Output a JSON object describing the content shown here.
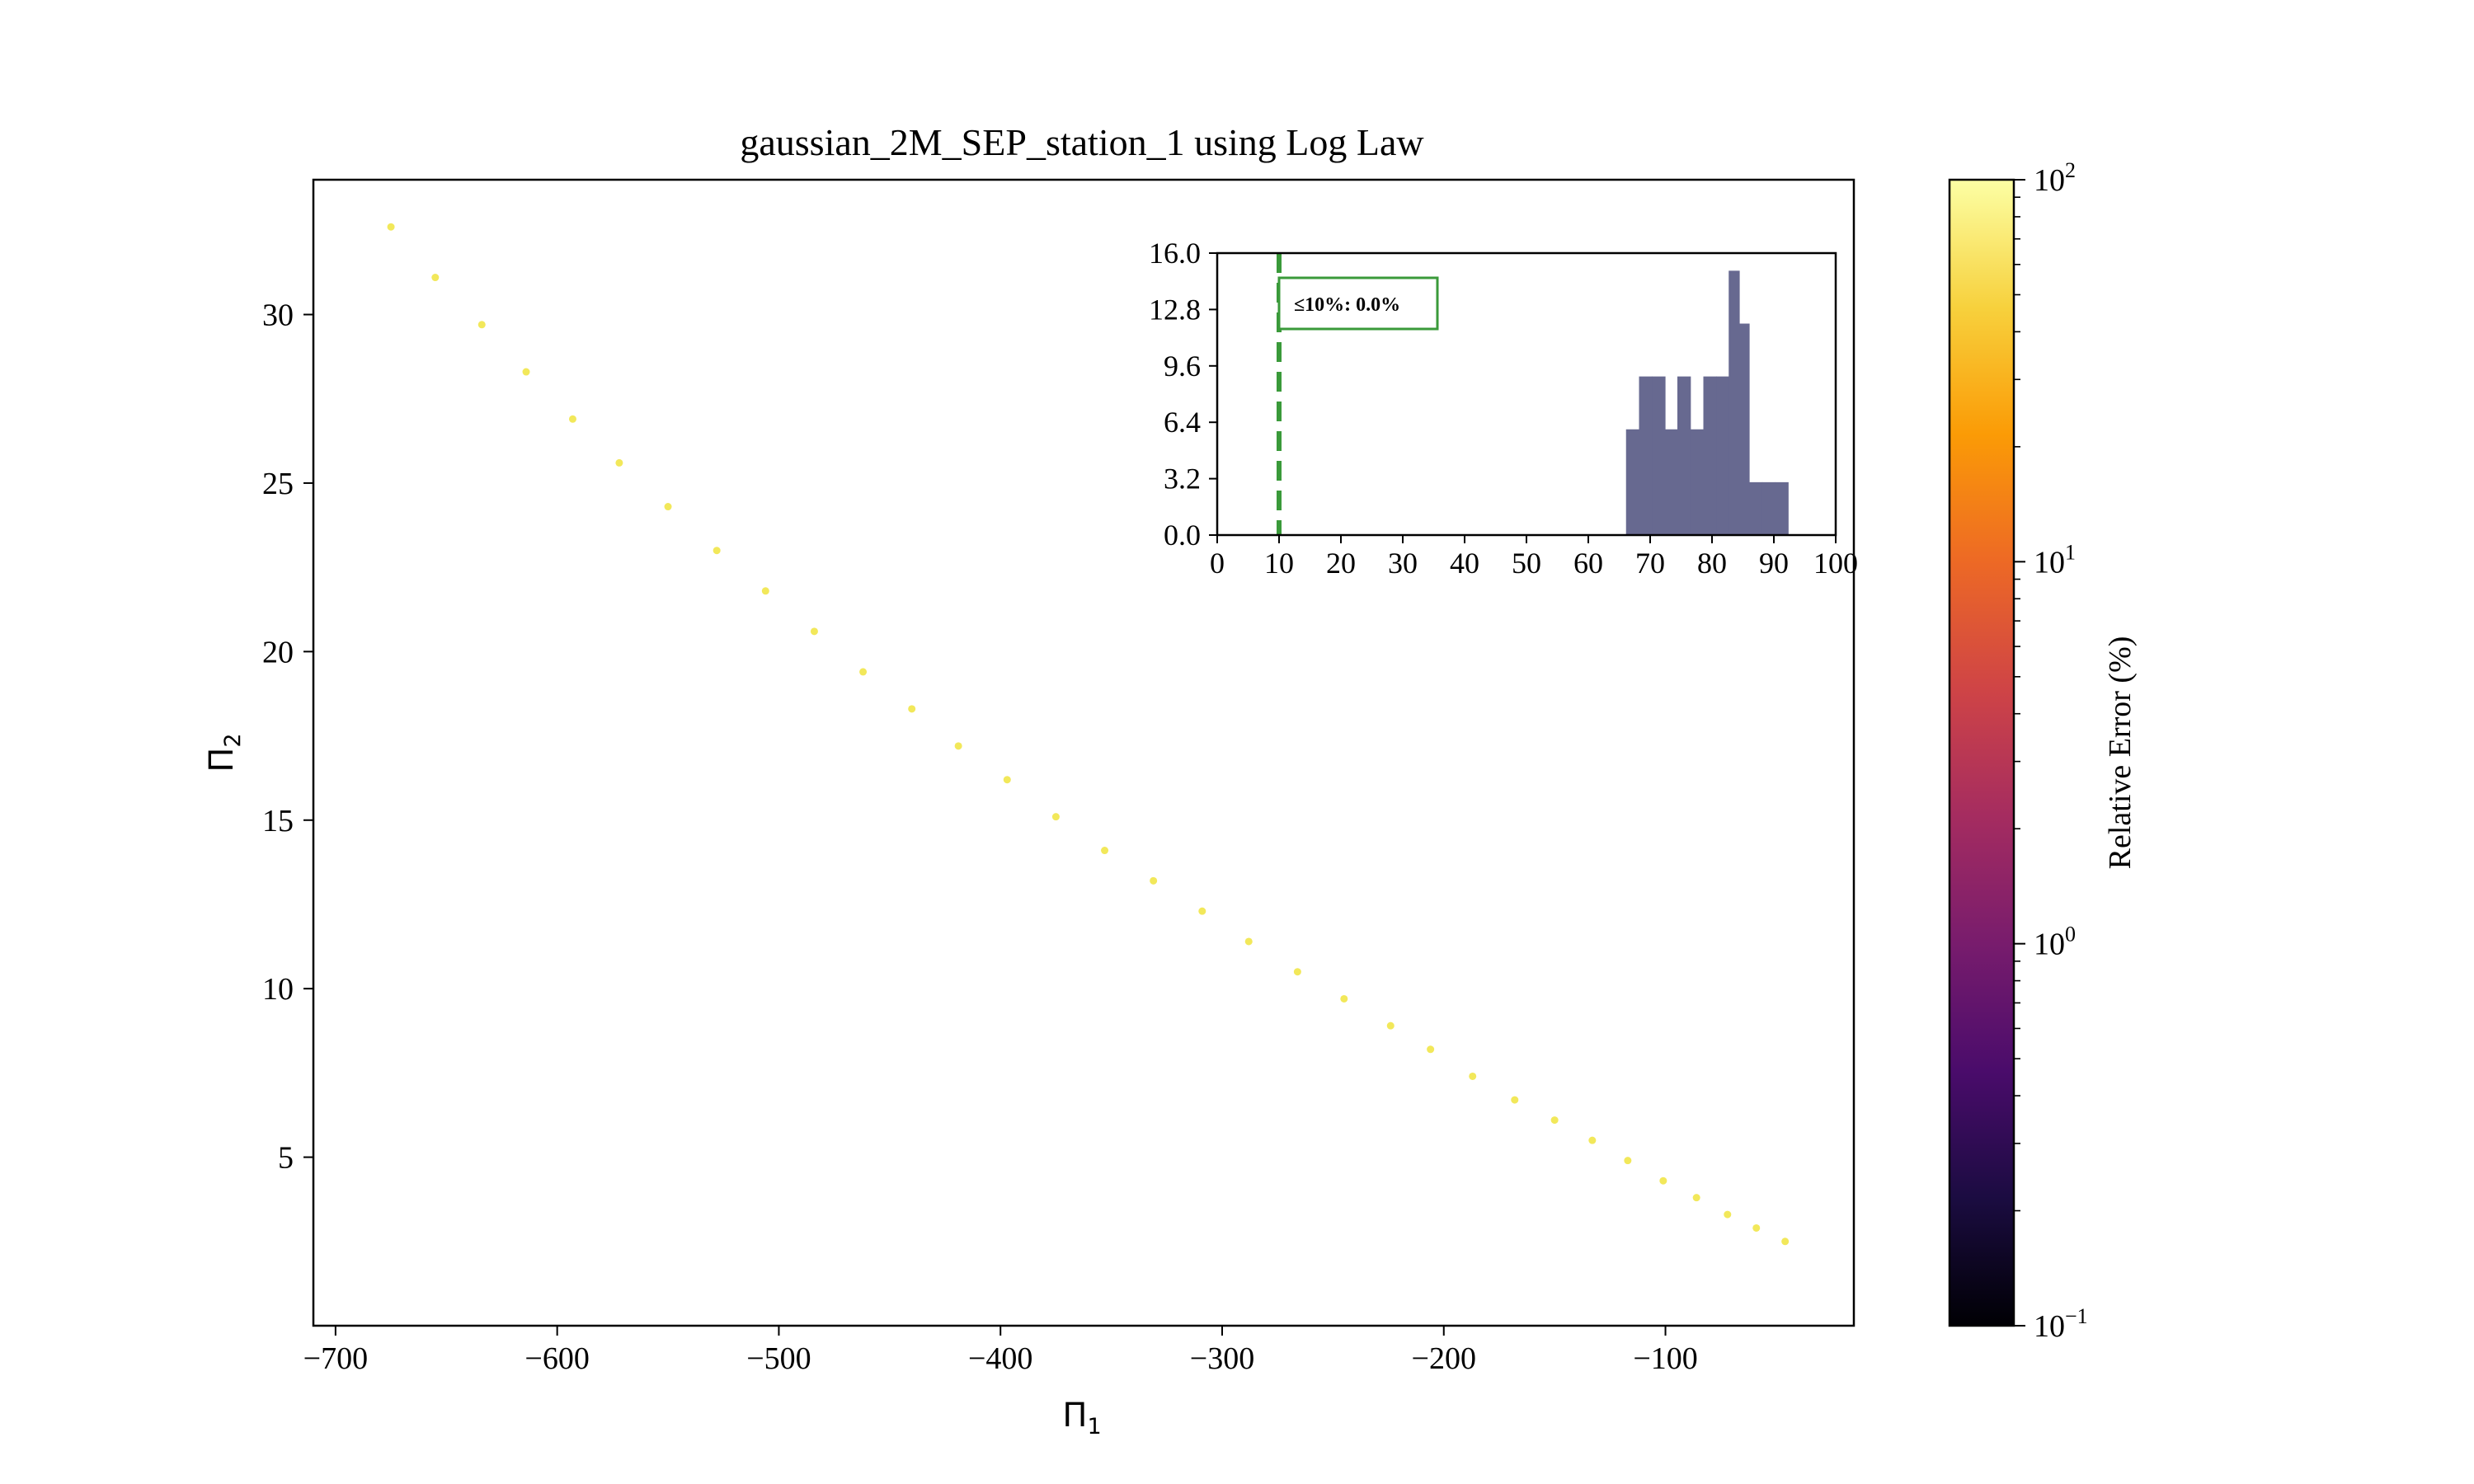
{
  "chart_data": [
    {
      "type": "scatter",
      "title": "gaussian_2M_SEP_station_1 using Log Law",
      "xlabel": "Π",
      "xlabel_sub": "1",
      "ylabel": "Π",
      "ylabel_sub": "2",
      "xlim": [
        -710,
        -15
      ],
      "ylim": [
        0.0,
        34.0
      ],
      "xticks": [
        -700,
        -600,
        -500,
        -400,
        -300,
        -200,
        -100
      ],
      "xtick_labels": [
        "−700",
        "−600",
        "−500",
        "−400",
        "−300",
        "−200",
        "−100"
      ],
      "yticks": [
        5,
        10,
        15,
        20,
        25,
        30
      ],
      "ytick_labels": [
        "5",
        "10",
        "15",
        "20",
        "25",
        "30"
      ],
      "point_color": "#f2e85a",
      "points": [
        [
          -675,
          32.6
        ],
        [
          -655,
          31.1
        ],
        [
          -634,
          29.7
        ],
        [
          -614,
          28.3
        ],
        [
          -593,
          26.9
        ],
        [
          -572,
          25.6
        ],
        [
          -550,
          24.3
        ],
        [
          -528,
          23.0
        ],
        [
          -506,
          21.8
        ],
        [
          -484,
          20.6
        ],
        [
          -462,
          19.4
        ],
        [
          -440,
          18.3
        ],
        [
          -419,
          17.2
        ],
        [
          -397,
          16.2
        ],
        [
          -375,
          15.1
        ],
        [
          -353,
          14.1
        ],
        [
          -331,
          13.2
        ],
        [
          -309,
          12.3
        ],
        [
          -288,
          11.4
        ],
        [
          -266,
          10.5
        ],
        [
          -245,
          9.7
        ],
        [
          -224,
          8.9
        ],
        [
          -206,
          8.2
        ],
        [
          -187,
          7.4
        ],
        [
          -168,
          6.7
        ],
        [
          -150,
          6.1
        ],
        [
          -133,
          5.5
        ],
        [
          -117,
          4.9
        ],
        [
          -101,
          4.3
        ],
        [
          -86,
          3.8
        ],
        [
          -72,
          3.3
        ],
        [
          -59,
          2.9
        ],
        [
          -46,
          2.5
        ]
      ]
    },
    {
      "type": "bar",
      "subtype": "histogram",
      "xlim": [
        0,
        100
      ],
      "ylim": [
        0,
        16
      ],
      "xticks": [
        0,
        10,
        20,
        30,
        40,
        50,
        60,
        70,
        80,
        90,
        100
      ],
      "xtick_labels": [
        "0",
        "10",
        "20",
        "30",
        "40",
        "50",
        "60",
        "70",
        "80",
        "90",
        "100"
      ],
      "yticks": [
        0,
        3.2,
        6.4,
        9.6,
        12.8,
        16.0
      ],
      "ytick_labels": [
        "0.0",
        "3.2",
        "6.4",
        "9.6",
        "12.8",
        "16.0"
      ],
      "bar_color": "#676990",
      "bin_edges": [
        66.1,
        68.2,
        70.3,
        72.4,
        74.4,
        76.5,
        78.6,
        80.7,
        82.7,
        84.4,
        86.0,
        88.1,
        90.2,
        92.3
      ],
      "counts": [
        6,
        9,
        9,
        6,
        9,
        6,
        9,
        9,
        15,
        12,
        3,
        3,
        3
      ],
      "threshold_line": 10,
      "threshold_color": "#3a9a3a",
      "annotation": "≤10%: 0.0%"
    },
    {
      "type": "heatmap",
      "subtype": "colorbar",
      "label": "Relative Error (%)",
      "scale": "log",
      "range": [
        0.1,
        100
      ],
      "tick_labels": [
        {
          "base": "10",
          "exp": "−1",
          "value": 0.1
        },
        {
          "base": "10",
          "exp": "0",
          "value": 1
        },
        {
          "base": "10",
          "exp": "1",
          "value": 10
        },
        {
          "base": "10",
          "exp": "2",
          "value": 100
        }
      ],
      "colormap": "inferno",
      "colormap_stops": [
        "#000004",
        "#1b0c41",
        "#4a0c6b",
        "#781c6d",
        "#a52c60",
        "#cf4446",
        "#ed6925",
        "#fb9b06",
        "#f7d13d",
        "#fcffa4"
      ]
    }
  ]
}
